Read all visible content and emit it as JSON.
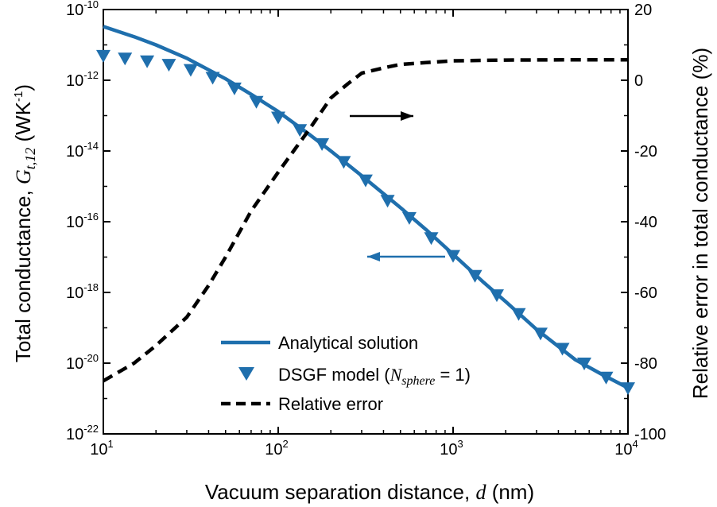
{
  "chart_data": {
    "type": "line",
    "xlabel_prefix": "Vacuum separation distance, ",
    "xlabel_var": "d",
    "xlabel_suffix": " (nm)",
    "ylabel_left_prefix": "Total conductance, ",
    "ylabel_left_var": "G",
    "ylabel_left_sub": "t,12",
    "ylabel_left_unit_pre": " (WK",
    "ylabel_left_unit_exp": "-1",
    "ylabel_left_unit_post": ")",
    "ylabel_right": "Relative error in total conductance (%)",
    "x_scale": "log",
    "x_range": [
      10,
      10000
    ],
    "x_tick_base": "10",
    "x_tick_exponents": [
      "1",
      "2",
      "3",
      "4"
    ],
    "y_left_scale": "log",
    "y_left_range": [
      1e-22,
      1e-10
    ],
    "y_left_tick_base": "10",
    "y_left_tick_exponents": [
      "-10",
      "-12",
      "-14",
      "-16",
      "-18",
      "-20",
      "-22"
    ],
    "y_right_range": [
      -100,
      20
    ],
    "y_right_ticks": [
      "20",
      "0",
      "-20",
      "-40",
      "-60",
      "-80",
      "-100"
    ],
    "legend_position": "bottom-center",
    "legend": [
      {
        "label": "Analytical solution",
        "style": "solid line"
      },
      {
        "label_prefix": "DSGF model (",
        "label_var": "N",
        "label_sub": "sphere",
        "label_suffix": " = 1)",
        "style": "down triangle"
      },
      {
        "label": "Relative error",
        "style": "dashed line"
      }
    ],
    "series": [
      {
        "name": "Analytical solution",
        "axis": "left",
        "color": "#1f6fad",
        "x": [
          10,
          15,
          20,
          30,
          50,
          70,
          100,
          150,
          200,
          300,
          500,
          700,
          1000,
          1500,
          2000,
          3000,
          5000,
          7000,
          10000
        ],
        "y": [
          3.3e-11,
          1.7e-11,
          1e-11,
          4.2e-12,
          1.1e-12,
          4e-13,
          1.3e-13,
          3e-14,
          1e-14,
          2e-15,
          2.5e-16,
          6e-17,
          1.2e-17,
          1.9e-18,
          5.5e-19,
          9e-20,
          1.25e-20,
          5e-21,
          2e-21
        ]
      },
      {
        "name": "DSGF model (N_sphere = 1)",
        "axis": "left",
        "color": "#1f6fad",
        "x": [
          10,
          13.3,
          17.8,
          23.7,
          31.6,
          42.2,
          56.2,
          75,
          100,
          133,
          178,
          237,
          316,
          422,
          562,
          750,
          1000,
          1334,
          1778,
          2371,
          3162,
          4217,
          5623,
          7499,
          10000
        ],
        "y": [
          5e-12,
          4.2e-12,
          3.5e-12,
          2.8e-12,
          2e-12,
          1.2e-12,
          6e-13,
          2.5e-13,
          9e-14,
          4e-14,
          1.6e-14,
          5e-15,
          1.5e-15,
          4e-16,
          1.3e-16,
          3.5e-17,
          1.1e-17,
          3e-18,
          8.5e-19,
          2.5e-19,
          7e-20,
          2.6e-20,
          1e-20,
          4e-21,
          2e-21
        ]
      },
      {
        "name": "Relative error",
        "axis": "right",
        "color": "#000000",
        "x": [
          10,
          15,
          20,
          30,
          40,
          50,
          70,
          100,
          150,
          200,
          250,
          300,
          400,
          500,
          700,
          1000,
          2000,
          5000,
          10000
        ],
        "y": [
          -85,
          -80,
          -75,
          -67,
          -58,
          -50,
          -37,
          -26,
          -14,
          -5,
          -1,
          2,
          3.5,
          4.5,
          5,
          5.5,
          5.7,
          5.8,
          5.8
        ]
      }
    ],
    "annotations": [
      {
        "type": "arrow",
        "points_to": "right axis",
        "near_x": 270
      },
      {
        "type": "arrow",
        "points_to": "left axis",
        "near_x": 560
      }
    ]
  }
}
